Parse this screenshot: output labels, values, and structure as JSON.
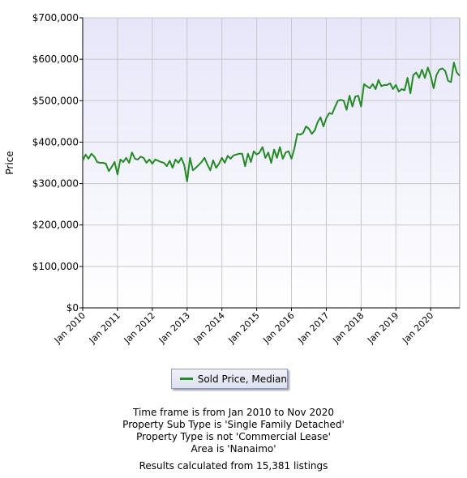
{
  "chart_data": {
    "type": "line",
    "ylabel": "Price",
    "ylim": [
      0,
      700000
    ],
    "y_ticks": [
      "$0",
      "$100,000",
      "$200,000",
      "$300,000",
      "$400,000",
      "$500,000",
      "$600,000",
      "$700,000"
    ],
    "x_ticks": [
      "Jan 2010",
      "Jan 2011",
      "Jan 2012",
      "Jan 2013",
      "Jan 2014",
      "Jan 2015",
      "Jan 2016",
      "Jan 2017",
      "Jan 2018",
      "Jan 2019",
      "Jan 2020"
    ],
    "grid": true,
    "x_range": [
      "2010-01",
      "2020-11"
    ],
    "series": [
      {
        "name": "Sold Price, Median",
        "color": "#228B22",
        "x": [
          "2010-01",
          "2010-02",
          "2010-03",
          "2010-04",
          "2010-05",
          "2010-06",
          "2010-07",
          "2010-08",
          "2010-09",
          "2010-10",
          "2010-11",
          "2010-12",
          "2011-01",
          "2011-02",
          "2011-03",
          "2011-04",
          "2011-05",
          "2011-06",
          "2011-07",
          "2011-08",
          "2011-09",
          "2011-10",
          "2011-11",
          "2011-12",
          "2012-01",
          "2012-02",
          "2012-03",
          "2012-04",
          "2012-05",
          "2012-06",
          "2012-07",
          "2012-08",
          "2012-09",
          "2012-10",
          "2012-11",
          "2012-12",
          "2013-01",
          "2013-02",
          "2013-03",
          "2013-04",
          "2013-05",
          "2013-06",
          "2013-07",
          "2013-08",
          "2013-09",
          "2013-10",
          "2013-11",
          "2013-12",
          "2014-01",
          "2014-02",
          "2014-03",
          "2014-04",
          "2014-05",
          "2014-06",
          "2014-07",
          "2014-08",
          "2014-09",
          "2014-10",
          "2014-11",
          "2014-12",
          "2015-01",
          "2015-02",
          "2015-03",
          "2015-04",
          "2015-05",
          "2015-06",
          "2015-07",
          "2015-08",
          "2015-09",
          "2015-10",
          "2015-11",
          "2015-12",
          "2016-01",
          "2016-02",
          "2016-03",
          "2016-04",
          "2016-05",
          "2016-06",
          "2016-07",
          "2016-08",
          "2016-09",
          "2016-10",
          "2016-11",
          "2016-12",
          "2017-01",
          "2017-02",
          "2017-03",
          "2017-04",
          "2017-05",
          "2017-06",
          "2017-07",
          "2017-08",
          "2017-09",
          "2017-10",
          "2017-11",
          "2017-12",
          "2018-01",
          "2018-02",
          "2018-03",
          "2018-04",
          "2018-05",
          "2018-06",
          "2018-07",
          "2018-08",
          "2018-09",
          "2018-10",
          "2018-11",
          "2018-12",
          "2019-01",
          "2019-02",
          "2019-03",
          "2019-04",
          "2019-05",
          "2019-06",
          "2019-07",
          "2019-08",
          "2019-09",
          "2019-10",
          "2019-11",
          "2019-12",
          "2020-01",
          "2020-02",
          "2020-03",
          "2020-04",
          "2020-05",
          "2020-06",
          "2020-07",
          "2020-08",
          "2020-09",
          "2020-10",
          "2020-11"
        ],
        "values": [
          355000,
          370000,
          360000,
          372000,
          365000,
          352000,
          350000,
          350000,
          348000,
          330000,
          340000,
          352000,
          322000,
          358000,
          352000,
          362000,
          350000,
          375000,
          360000,
          358000,
          365000,
          362000,
          350000,
          358000,
          348000,
          358000,
          355000,
          352000,
          350000,
          342000,
          355000,
          338000,
          358000,
          350000,
          362000,
          345000,
          305000,
          362000,
          332000,
          338000,
          345000,
          352000,
          362000,
          346000,
          332000,
          356000,
          338000,
          348000,
          362000,
          350000,
          367000,
          360000,
          368000,
          370000,
          372000,
          372000,
          342000,
          372000,
          352000,
          378000,
          370000,
          375000,
          388000,
          362000,
          375000,
          350000,
          382000,
          362000,
          388000,
          360000,
          375000,
          378000,
          360000,
          385000,
          420000,
          418000,
          422000,
          438000,
          432000,
          420000,
          428000,
          448000,
          460000,
          438000,
          458000,
          470000,
          468000,
          485000,
          500000,
          502000,
          500000,
          478000,
          512000,
          486000,
          510000,
          512000,
          486000,
          540000,
          535000,
          530000,
          540000,
          528000,
          550000,
          535000,
          538000,
          538000,
          542000,
          528000,
          538000,
          522000,
          528000,
          525000,
          555000,
          518000,
          562000,
          568000,
          555000,
          575000,
          555000,
          580000,
          560000,
          530000,
          562000,
          575000,
          578000,
          572000,
          548000,
          545000,
          592000,
          568000,
          560000
        ]
      }
    ]
  },
  "legend": {
    "label": "Sold Price, Median",
    "color": "#228B22"
  },
  "notes": [
    "Time frame is from Jan 2010 to Nov 2020",
    "Property Sub Type is 'Single Family Detached'",
    "Property Type is not 'Commercial Lease'",
    "Area is 'Nanaimo'"
  ],
  "results": "Results calculated from 15,381 listings"
}
